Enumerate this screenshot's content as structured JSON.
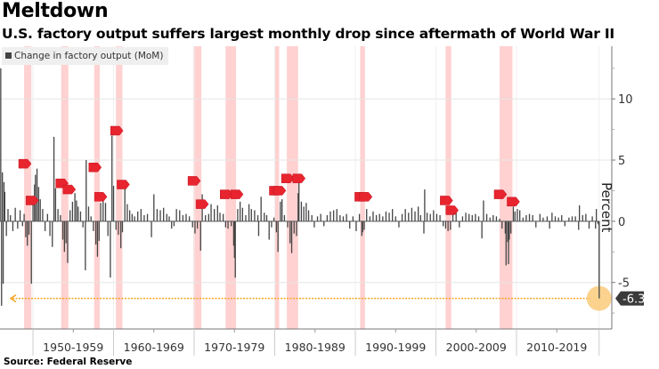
{
  "title": "Meltdown",
  "subtitle": "U.S. factory output suffers largest monthly drop since aftermath of World War II",
  "source": "Source:  Federal Reserve",
  "chart_data": {
    "type": "bar",
    "title": "Meltdown",
    "subtitle": "U.S. factory output suffers largest monthly drop since aftermath of World War II",
    "xlabel": "",
    "ylabel": "Percent",
    "legend": [
      {
        "name": "Change in factory output (MoM)",
        "color": "#444444"
      }
    ],
    "legend_position": "top-left",
    "xlim": [
      1945.9,
      2020.6
    ],
    "ylim": [
      -8.8,
      14.3
    ],
    "yticks": [
      -5,
      0,
      5,
      10
    ],
    "y_minor_ticks": [
      -7.5,
      -2.5,
      2.5,
      7.5,
      12.5
    ],
    "grid": true,
    "x_decades": [
      {
        "label": "1950-1959",
        "start": 1950
      },
      {
        "label": "1960-1969",
        "start": 1960
      },
      {
        "label": "1970-1979",
        "start": 1970
      },
      {
        "label": "1980-1989",
        "start": 1980
      },
      {
        "label": "1990-1999",
        "start": 1990
      },
      {
        "label": "2000-2009",
        "start": 2000
      },
      {
        "label": "2010-2019",
        "start": 2010
      }
    ],
    "x_end": 2020.25,
    "recessions": [
      [
        1948.9,
        1949.8
      ],
      [
        1953.5,
        1954.4
      ],
      [
        1957.6,
        1958.3
      ],
      [
        1960.3,
        1961.1
      ],
      [
        1969.9,
        1970.9
      ],
      [
        1973.9,
        1975.2
      ],
      [
        1980.0,
        1980.5
      ],
      [
        1981.5,
        1982.9
      ],
      [
        1990.6,
        1991.2
      ],
      [
        2001.2,
        2001.9
      ],
      [
        2007.9,
        2009.5
      ]
    ],
    "series": [
      {
        "name": "Change in factory output (MoM)",
        "color": "#444444",
        "points": [
          [
            1946.0,
            12.5
          ],
          [
            1946.1,
            -6.9
          ],
          [
            1946.2,
            4.0
          ],
          [
            1946.3,
            -5.1
          ],
          [
            1946.4,
            3.2
          ],
          [
            1946.5,
            2.4
          ],
          [
            1946.7,
            -1.2
          ],
          [
            1946.9,
            1.0
          ],
          [
            1947.2,
            0.5
          ],
          [
            1947.5,
            -0.8
          ],
          [
            1947.8,
            1.1
          ],
          [
            1948.1,
            -0.6
          ],
          [
            1948.4,
            0.9
          ],
          [
            1948.7,
            -0.4
          ],
          [
            1948.9,
            0.6
          ],
          [
            1949.1,
            -1.3
          ],
          [
            1949.3,
            -2.0
          ],
          [
            1949.5,
            -1.1
          ],
          [
            1949.8,
            -5.1
          ],
          [
            1950.0,
            2.0
          ],
          [
            1950.2,
            3.0
          ],
          [
            1950.3,
            3.8
          ],
          [
            1950.5,
            4.3
          ],
          [
            1950.7,
            2.8
          ],
          [
            1950.9,
            1.8
          ],
          [
            1951.2,
            1.0
          ],
          [
            1951.5,
            -0.8
          ],
          [
            1951.8,
            0.6
          ],
          [
            1952.1,
            -1.2
          ],
          [
            1952.4,
            -2.1
          ],
          [
            1952.6,
            6.9
          ],
          [
            1952.8,
            2.7
          ],
          [
            1953.1,
            1.0
          ],
          [
            1953.4,
            0.5
          ],
          [
            1953.7,
            -1.5
          ],
          [
            1953.9,
            -2.5
          ],
          [
            1954.1,
            -1.8
          ],
          [
            1954.3,
            -3.4
          ],
          [
            1954.6,
            0.9
          ],
          [
            1954.9,
            1.6
          ],
          [
            1955.2,
            2.3
          ],
          [
            1955.4,
            1.7
          ],
          [
            1955.6,
            1.2
          ],
          [
            1955.9,
            0.8
          ],
          [
            1956.2,
            -0.5
          ],
          [
            1956.5,
            -4.0
          ],
          [
            1956.6,
            5.0
          ],
          [
            1956.9,
            1.2
          ],
          [
            1957.2,
            0.4
          ],
          [
            1957.5,
            -0.8
          ],
          [
            1957.8,
            -1.9
          ],
          [
            1958.0,
            -2.9
          ],
          [
            1958.2,
            -1.6
          ],
          [
            1958.4,
            1.5
          ],
          [
            1958.7,
            1.9
          ],
          [
            1959.0,
            1.5
          ],
          [
            1959.3,
            -1.2
          ],
          [
            1959.6,
            -4.6
          ],
          [
            1959.8,
            7.0
          ],
          [
            1960.0,
            2.9
          ],
          [
            1960.3,
            -0.7
          ],
          [
            1960.6,
            -1.1
          ],
          [
            1960.9,
            -2.2
          ],
          [
            1961.1,
            -0.9
          ],
          [
            1961.4,
            2.7
          ],
          [
            1961.7,
            1.4
          ],
          [
            1962.0,
            0.9
          ],
          [
            1962.3,
            0.6
          ],
          [
            1962.6,
            0.4
          ],
          [
            1963.0,
            0.8
          ],
          [
            1963.4,
            1.0
          ],
          [
            1963.8,
            0.5
          ],
          [
            1964.2,
            0.6
          ],
          [
            1964.7,
            -1.3
          ],
          [
            1965.0,
            2.2
          ],
          [
            1965.4,
            1.0
          ],
          [
            1965.8,
            0.9
          ],
          [
            1966.2,
            1.1
          ],
          [
            1966.6,
            0.6
          ],
          [
            1966.9,
            0.4
          ],
          [
            1967.2,
            -0.6
          ],
          [
            1967.5,
            -0.4
          ],
          [
            1967.8,
            1.0
          ],
          [
            1968.2,
            0.9
          ],
          [
            1968.6,
            0.5
          ],
          [
            1969.0,
            0.6
          ],
          [
            1969.4,
            0.4
          ],
          [
            1969.8,
            -0.5
          ],
          [
            1970.1,
            -1.0
          ],
          [
            1970.4,
            -0.6
          ],
          [
            1970.8,
            -2.4
          ],
          [
            1971.0,
            2.2
          ],
          [
            1971.4,
            0.5
          ],
          [
            1971.8,
            0.6
          ],
          [
            1972.1,
            1.4
          ],
          [
            1972.5,
            1.0
          ],
          [
            1972.9,
            1.3
          ],
          [
            1973.2,
            0.7
          ],
          [
            1973.6,
            0.6
          ],
          [
            1973.9,
            -0.5
          ],
          [
            1974.2,
            -0.6
          ],
          [
            1974.6,
            -0.4
          ],
          [
            1974.9,
            -2.0
          ],
          [
            1975.0,
            -3.0
          ],
          [
            1975.1,
            -4.6
          ],
          [
            1975.4,
            1.0
          ],
          [
            1975.7,
            1.6
          ],
          [
            1976.0,
            1.1
          ],
          [
            1976.4,
            0.5
          ],
          [
            1976.8,
            1.4
          ],
          [
            1977.1,
            1.0
          ],
          [
            1977.5,
            0.9
          ],
          [
            1977.9,
            0.5
          ],
          [
            1978.0,
            -1.2
          ],
          [
            1978.3,
            2.0
          ],
          [
            1978.7,
            0.7
          ],
          [
            1979.0,
            0.5
          ],
          [
            1979.3,
            -1.5
          ],
          [
            1979.6,
            -0.5
          ],
          [
            1979.9,
            0.3
          ],
          [
            1980.2,
            -0.9
          ],
          [
            1980.4,
            -2.5
          ],
          [
            1980.7,
            1.6
          ],
          [
            1980.9,
            1.8
          ],
          [
            1981.2,
            0.5
          ],
          [
            1981.6,
            -0.5
          ],
          [
            1981.9,
            -1.8
          ],
          [
            1982.1,
            -2.6
          ],
          [
            1982.4,
            -1.0
          ],
          [
            1982.7,
            -1.2
          ],
          [
            1982.9,
            2.3
          ],
          [
            1983.0,
            3.5
          ],
          [
            1983.3,
            1.6
          ],
          [
            1983.6,
            1.2
          ],
          [
            1983.9,
            1.5
          ],
          [
            1984.2,
            0.9
          ],
          [
            1984.6,
            0.5
          ],
          [
            1984.9,
            -0.5
          ],
          [
            1985.3,
            0.4
          ],
          [
            1985.7,
            0.6
          ],
          [
            1986.1,
            -0.4
          ],
          [
            1986.5,
            0.5
          ],
          [
            1986.9,
            0.8
          ],
          [
            1987.3,
            0.9
          ],
          [
            1987.7,
            1.0
          ],
          [
            1988.1,
            0.5
          ],
          [
            1988.5,
            0.4
          ],
          [
            1988.9,
            0.6
          ],
          [
            1989.3,
            -0.6
          ],
          [
            1989.7,
            0.4
          ],
          [
            1990.1,
            -0.8
          ],
          [
            1990.5,
            0.6
          ],
          [
            1990.8,
            -1.2
          ],
          [
            1990.9,
            -0.9
          ],
          [
            1991.1,
            -0.7
          ],
          [
            1991.4,
            1.0
          ],
          [
            1991.8,
            0.4
          ],
          [
            1992.2,
            0.8
          ],
          [
            1992.6,
            0.5
          ],
          [
            1993.0,
            0.6
          ],
          [
            1993.4,
            0.4
          ],
          [
            1993.8,
            0.8
          ],
          [
            1994.2,
            0.7
          ],
          [
            1994.6,
            1.0
          ],
          [
            1995.0,
            0.4
          ],
          [
            1995.4,
            -0.5
          ],
          [
            1995.8,
            0.6
          ],
          [
            1996.2,
            1.0
          ],
          [
            1996.6,
            0.7
          ],
          [
            1997.0,
            1.1
          ],
          [
            1997.4,
            0.8
          ],
          [
            1997.8,
            1.2
          ],
          [
            1998.1,
            0.5
          ],
          [
            1998.5,
            -1.0
          ],
          [
            1998.6,
            2.6
          ],
          [
            1998.9,
            0.7
          ],
          [
            1999.3,
            0.6
          ],
          [
            1999.7,
            0.9
          ],
          [
            2000.1,
            0.6
          ],
          [
            2000.5,
            0.5
          ],
          [
            2000.9,
            -0.4
          ],
          [
            2001.2,
            -0.6
          ],
          [
            2001.5,
            -0.8
          ],
          [
            2001.8,
            -0.7
          ],
          [
            2002.1,
            0.6
          ],
          [
            2002.5,
            0.8
          ],
          [
            2002.9,
            -0.5
          ],
          [
            2003.3,
            0.4
          ],
          [
            2003.7,
            0.7
          ],
          [
            2004.1,
            0.6
          ],
          [
            2004.5,
            0.5
          ],
          [
            2004.9,
            0.6
          ],
          [
            2005.3,
            0.4
          ],
          [
            2005.7,
            -1.4
          ],
          [
            2005.9,
            1.7
          ],
          [
            2006.3,
            0.6
          ],
          [
            2006.7,
            0.3
          ],
          [
            2007.1,
            0.5
          ],
          [
            2007.5,
            0.4
          ],
          [
            2007.9,
            0.2
          ],
          [
            2008.2,
            -0.6
          ],
          [
            2008.6,
            -1.0
          ],
          [
            2008.7,
            -3.6
          ],
          [
            2008.9,
            -1.7
          ],
          [
            2009.0,
            -3.5
          ],
          [
            2009.1,
            -1.5
          ],
          [
            2009.3,
            -1.0
          ],
          [
            2009.6,
            1.2
          ],
          [
            2009.8,
            0.8
          ],
          [
            2010.1,
            1.0
          ],
          [
            2010.4,
            0.9
          ],
          [
            2010.8,
            0.3
          ],
          [
            2011.2,
            0.5
          ],
          [
            2011.6,
            0.6
          ],
          [
            2012.0,
            0.5
          ],
          [
            2012.4,
            -0.5
          ],
          [
            2012.9,
            0.6
          ],
          [
            2013.3,
            0.3
          ],
          [
            2013.8,
            0.4
          ],
          [
            2014.1,
            -0.6
          ],
          [
            2014.4,
            0.7
          ],
          [
            2014.8,
            0.4
          ],
          [
            2015.2,
            0.3
          ],
          [
            2015.6,
            0.5
          ],
          [
            2016.0,
            -0.4
          ],
          [
            2016.5,
            0.3
          ],
          [
            2016.9,
            0.4
          ],
          [
            2017.3,
            0.4
          ],
          [
            2017.7,
            -0.7
          ],
          [
            2017.8,
            1.3
          ],
          [
            2018.2,
            0.5
          ],
          [
            2018.6,
            0.6
          ],
          [
            2019.0,
            -0.6
          ],
          [
            2019.4,
            0.4
          ],
          [
            2019.8,
            -0.6
          ],
          [
            2019.9,
            1.0
          ],
          [
            2020.1,
            -0.2
          ],
          [
            2020.2,
            -0.3
          ],
          [
            2020.25,
            -6.3
          ]
        ]
      }
    ],
    "annotations": [
      {
        "type": "reference-line",
        "value": -6.3,
        "style": "dotted",
        "color": "#f5a623",
        "direction": "left-arrow"
      },
      {
        "type": "highlight-circle",
        "x": 2020.25,
        "value": -6.3,
        "color": "#f9c46a"
      },
      {
        "type": "callout",
        "text": "-6.3",
        "value": -6.3
      }
    ],
    "markers": [
      {
        "x": 1948.9,
        "value": 4.7
      },
      {
        "x": 1949.8,
        "value": 1.7
      },
      {
        "x": 1953.5,
        "value": 3.1
      },
      {
        "x": 1954.4,
        "value": 2.6
      },
      {
        "x": 1957.6,
        "value": 4.4
      },
      {
        "x": 1958.3,
        "value": 2.0
      },
      {
        "x": 1960.3,
        "value": 7.4
      },
      {
        "x": 1961.1,
        "value": 3.0
      },
      {
        "x": 1969.9,
        "value": 3.3
      },
      {
        "x": 1970.9,
        "value": 1.4
      },
      {
        "x": 1973.9,
        "value": 2.2
      },
      {
        "x": 1975.2,
        "value": 2.2
      },
      {
        "x": 1980.0,
        "value": 2.5
      },
      {
        "x": 1980.5,
        "value": 2.5
      },
      {
        "x": 1981.5,
        "value": 3.5
      },
      {
        "x": 1982.9,
        "value": 3.5
      },
      {
        "x": 1990.6,
        "value": 2.0
      },
      {
        "x": 1991.2,
        "value": 2.0
      },
      {
        "x": 2001.2,
        "value": 1.7
      },
      {
        "x": 2001.9,
        "value": 0.9
      },
      {
        "x": 2007.9,
        "value": 2.2
      },
      {
        "x": 2009.5,
        "value": 1.6
      }
    ]
  }
}
